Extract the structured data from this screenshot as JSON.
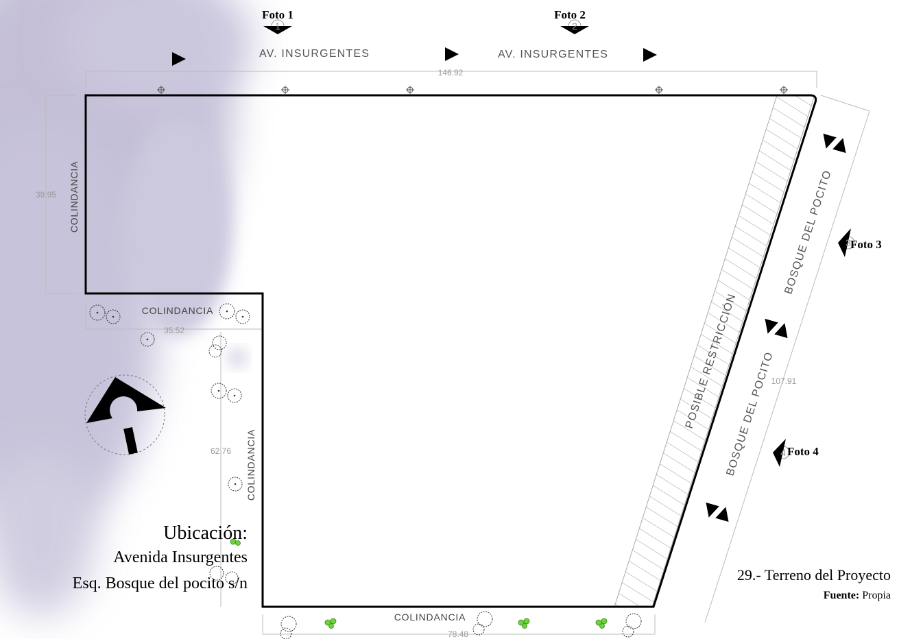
{
  "streets": {
    "top_left": "AV. INSURGENTES",
    "top_right": "AV. INSURGENTES",
    "right_upper": "BOSQUE   DEL   POCITO",
    "right_lower": "BOSQUE   DEL   POCITO"
  },
  "restriction_label": "POSIBLE  RESTRICCIÓN",
  "colindancia": {
    "left": "COLINDANCIA",
    "middle": "COLINDANCIA",
    "inner": "COLINDANCIA",
    "bottom": "COLINDANCIA"
  },
  "dimensions": {
    "top": "146.92",
    "left": "39.95",
    "step": "35.52",
    "inner": "62.76",
    "bottom": "78.48",
    "right": "107.91"
  },
  "photos": [
    {
      "label": "Foto 1",
      "number": "1"
    },
    {
      "label": "Foto 2",
      "number": "2"
    },
    {
      "label": "Foto 3",
      "number": "3"
    },
    {
      "label": "Foto 4",
      "number": "4"
    }
  ],
  "location": {
    "title": "Ubicación:",
    "line1": "Avenida Insurgentes",
    "line2": "Esq. Bosque del pocito s/n"
  },
  "figure": {
    "title": "29.- Terreno del Proyecto",
    "source_label": "Fuente:",
    "source_value": "Propia"
  },
  "colors": {
    "watercolor": "#9d95bd",
    "boundary": "#000000",
    "dimension": "#bbbbbb",
    "tree_green": "#6fd23a"
  }
}
